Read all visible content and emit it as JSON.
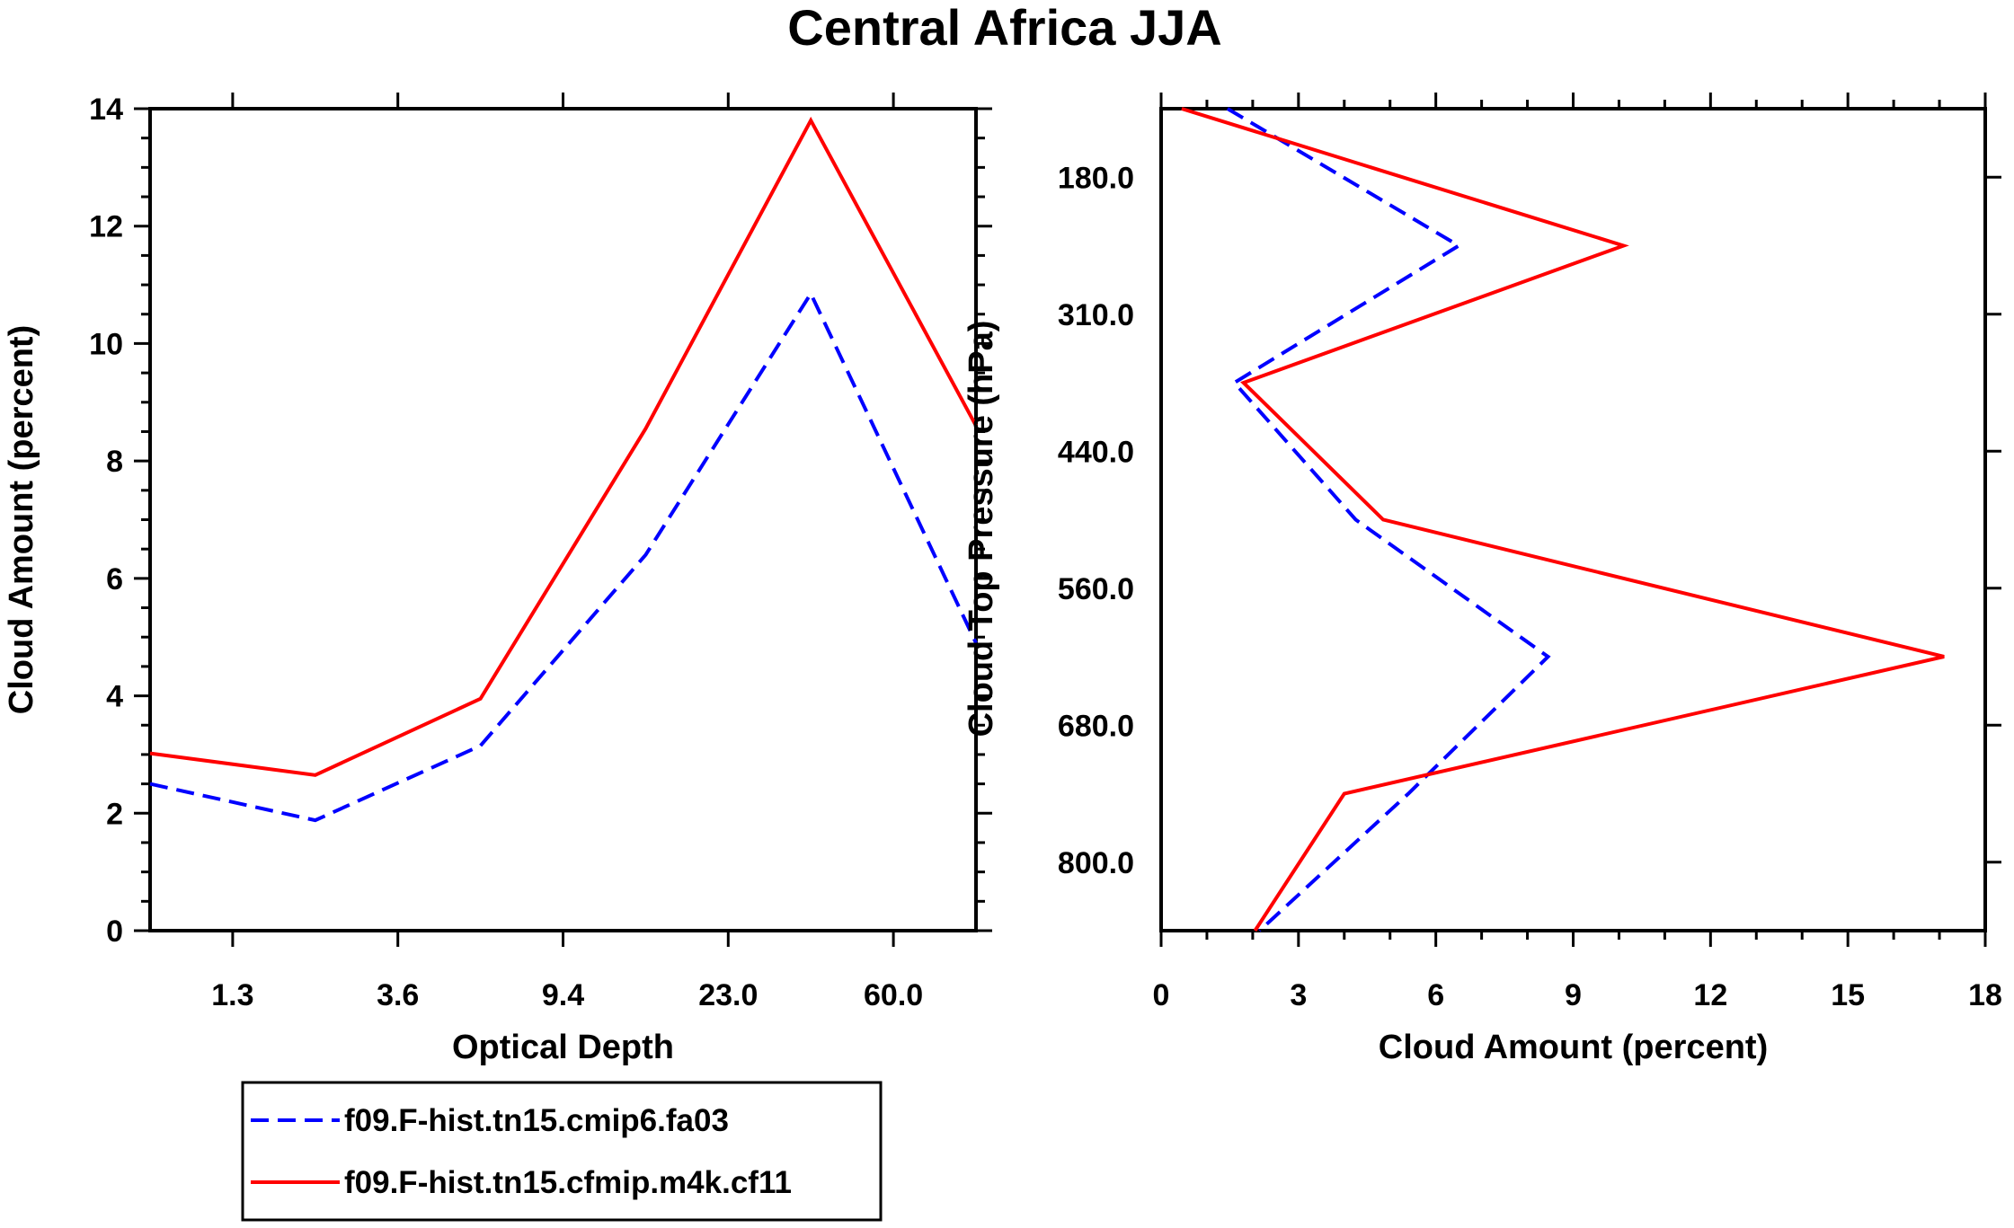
{
  "title": "Central Africa JJA",
  "colors": {
    "blue": "#0000ff",
    "red": "#ff0000",
    "axis": "#000000"
  },
  "legend": {
    "items": [
      {
        "label": "f09.F-hist.tn15.cmip6.fa03",
        "color": "#0000ff",
        "style": "dashed"
      },
      {
        "label": "f09.F-hist.tn15.cfmip.m4k.cf11",
        "color": "#ff0000",
        "style": "solid"
      }
    ]
  },
  "chart_data": [
    {
      "type": "line",
      "xlabel": "Optical Depth",
      "ylabel": "Cloud Amount (percent)",
      "x_tick_labels": [
        "1.3",
        "3.6",
        "9.4",
        "23.0",
        "60.0"
      ],
      "x_index": [
        0,
        1,
        2,
        3,
        4,
        5
      ],
      "ylim": [
        0,
        14
      ],
      "y_ticks": [
        0,
        2,
        4,
        6,
        8,
        10,
        12,
        14
      ],
      "series": [
        {
          "name": "f09.F-hist.tn15.cmip6.fa03",
          "values": [
            2.5,
            1.88,
            3.15,
            6.4,
            10.85,
            4.9
          ]
        },
        {
          "name": "f09.F-hist.tn15.cfmip.m4k.cf11",
          "values": [
            3.02,
            2.65,
            3.95,
            8.55,
            13.8,
            8.6
          ]
        }
      ]
    },
    {
      "type": "line",
      "orientation": "vertical-profile",
      "xlabel": "Cloud Amount (percent)",
      "ylabel": "Cloud Top Pressure (hPa)",
      "xlim": [
        0,
        18
      ],
      "x_ticks": [
        0,
        3,
        6,
        9,
        12,
        15,
        18
      ],
      "y_tick_labels": [
        "180.0",
        "310.0",
        "440.0",
        "560.0",
        "680.0",
        "800.0"
      ],
      "y_index": [
        0,
        1,
        2,
        3,
        4,
        5,
        6
      ],
      "series": [
        {
          "name": "f09.F-hist.tn15.cmip6.fa03",
          "values": [
            1.45,
            6.5,
            1.6,
            4.25,
            8.45,
            5.4,
            2.15
          ]
        },
        {
          "name": "f09.F-hist.tn15.cfmip.m4k.cf11",
          "values": [
            0.45,
            10.1,
            1.8,
            4.85,
            17.1,
            4.0,
            2.05
          ]
        }
      ]
    }
  ]
}
